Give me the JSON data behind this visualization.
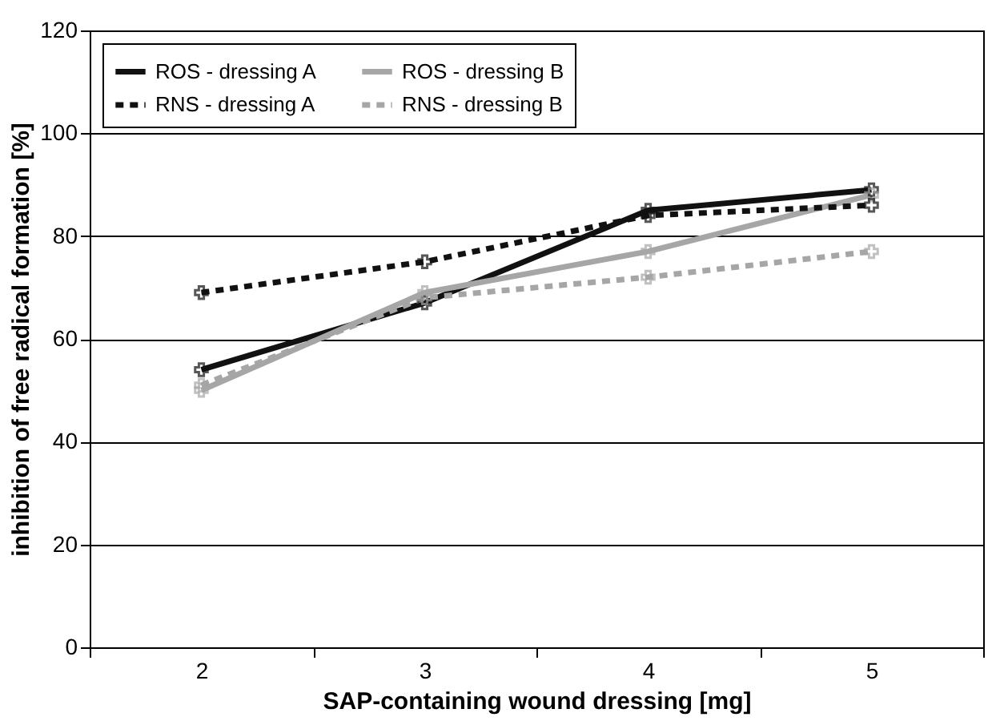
{
  "chart_data": {
    "type": "line",
    "xlabel": "SAP-containing wound dressing [mg]",
    "ylabel": "inhibition of free radical formation [%]",
    "categories": [
      "2",
      "3",
      "4",
      "5"
    ],
    "series": [
      {
        "name": "ROS - dressing A",
        "color": "#111111",
        "line_style": "solid",
        "marker": "cross",
        "values": [
          54,
          67,
          85,
          89
        ]
      },
      {
        "name": "ROS - dressing B",
        "color": "#a6a6a6",
        "line_style": "solid",
        "marker": "cross",
        "values": [
          50,
          69,
          77,
          88
        ]
      },
      {
        "name": "RNS - dressing A",
        "color": "#111111",
        "line_style": "dashed",
        "marker": "cross",
        "values": [
          69,
          75,
          84,
          86
        ]
      },
      {
        "name": "RNS - dressing B",
        "color": "#a6a6a6",
        "line_style": "dashed",
        "marker": "cross",
        "values": [
          51,
          68,
          72,
          77
        ]
      }
    ],
    "ylim": [
      0,
      120
    ],
    "yticks": [
      0,
      20,
      40,
      60,
      80,
      100,
      120
    ],
    "grid": "y",
    "legend": "top left"
  }
}
